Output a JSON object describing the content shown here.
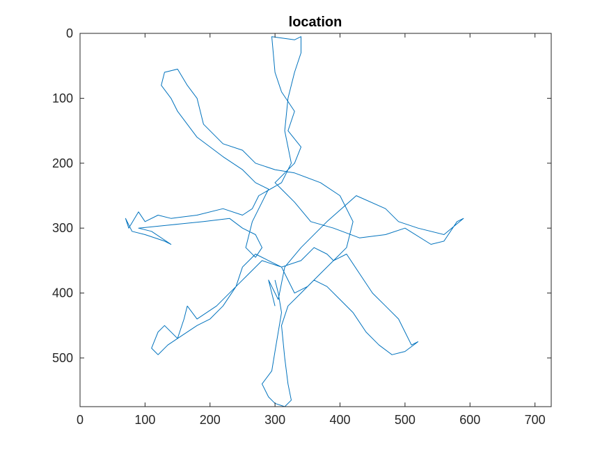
{
  "chart_data": {
    "type": "line",
    "title": "location",
    "xlabel": "",
    "ylabel": "",
    "xlim": [
      0,
      725
    ],
    "ylim": [
      0,
      575
    ],
    "y_reversed": true,
    "grid": false,
    "x_ticks": [
      0,
      100,
      200,
      300,
      400,
      500,
      600,
      700
    ],
    "y_ticks": [
      0,
      100,
      200,
      300,
      400,
      500
    ],
    "line_color": "#0072BD",
    "series": [
      {
        "points": [
          [
            300,
            420
          ],
          [
            290,
            380
          ],
          [
            305,
            410
          ],
          [
            315,
            360
          ],
          [
            340,
            330
          ],
          [
            380,
            290
          ],
          [
            425,
            250
          ],
          [
            470,
            270
          ],
          [
            490,
            290
          ],
          [
            520,
            300
          ],
          [
            560,
            310
          ],
          [
            590,
            285
          ],
          [
            580,
            290
          ],
          [
            560,
            320
          ],
          [
            540,
            325
          ],
          [
            500,
            300
          ],
          [
            470,
            310
          ],
          [
            430,
            315
          ],
          [
            390,
            300
          ],
          [
            355,
            290
          ],
          [
            330,
            260
          ],
          [
            310,
            240
          ],
          [
            300,
            230
          ],
          [
            330,
            200
          ],
          [
            340,
            175
          ],
          [
            320,
            150
          ],
          [
            330,
            120
          ],
          [
            310,
            90
          ],
          [
            300,
            60
          ],
          [
            295,
            5
          ],
          [
            330,
            10
          ],
          [
            340,
            5
          ],
          [
            340,
            30
          ],
          [
            330,
            60
          ],
          [
            320,
            100
          ],
          [
            315,
            150
          ],
          [
            325,
            200
          ],
          [
            310,
            230
          ],
          [
            275,
            250
          ],
          [
            265,
            270
          ],
          [
            250,
            280
          ],
          [
            220,
            270
          ],
          [
            180,
            280
          ],
          [
            140,
            285
          ],
          [
            120,
            280
          ],
          [
            100,
            290
          ],
          [
            90,
            275
          ],
          [
            75,
            300
          ],
          [
            70,
            285
          ],
          [
            80,
            305
          ],
          [
            100,
            310
          ],
          [
            130,
            320
          ],
          [
            140,
            325
          ],
          [
            110,
            305
          ],
          [
            90,
            300
          ],
          [
            140,
            295
          ],
          [
            190,
            290
          ],
          [
            230,
            285
          ],
          [
            250,
            300
          ],
          [
            270,
            310
          ],
          [
            280,
            330
          ],
          [
            270,
            345
          ],
          [
            255,
            330
          ],
          [
            265,
            290
          ],
          [
            280,
            260
          ],
          [
            290,
            240
          ],
          [
            270,
            230
          ],
          [
            250,
            210
          ],
          [
            220,
            190
          ],
          [
            200,
            175
          ],
          [
            180,
            160
          ],
          [
            150,
            120
          ],
          [
            140,
            100
          ],
          [
            125,
            80
          ],
          [
            130,
            60
          ],
          [
            150,
            55
          ],
          [
            165,
            80
          ],
          [
            180,
            100
          ],
          [
            190,
            140
          ],
          [
            220,
            170
          ],
          [
            250,
            180
          ],
          [
            270,
            200
          ],
          [
            300,
            210
          ],
          [
            330,
            215
          ],
          [
            370,
            230
          ],
          [
            400,
            250
          ],
          [
            420,
            290
          ],
          [
            410,
            330
          ],
          [
            390,
            350
          ],
          [
            380,
            340
          ],
          [
            360,
            330
          ],
          [
            340,
            350
          ],
          [
            310,
            360
          ],
          [
            290,
            350
          ],
          [
            270,
            340
          ],
          [
            250,
            360
          ],
          [
            240,
            390
          ],
          [
            220,
            420
          ],
          [
            200,
            440
          ],
          [
            180,
            450
          ],
          [
            150,
            470
          ],
          [
            135,
            480
          ],
          [
            120,
            495
          ],
          [
            110,
            485
          ],
          [
            120,
            460
          ],
          [
            130,
            450
          ],
          [
            150,
            470
          ],
          [
            160,
            440
          ],
          [
            165,
            420
          ],
          [
            180,
            440
          ],
          [
            210,
            420
          ],
          [
            240,
            390
          ],
          [
            260,
            370
          ],
          [
            280,
            350
          ],
          [
            310,
            360
          ],
          [
            320,
            380
          ],
          [
            330,
            400
          ],
          [
            350,
            390
          ],
          [
            370,
            370
          ],
          [
            390,
            350
          ],
          [
            410,
            340
          ],
          [
            430,
            370
          ],
          [
            450,
            400
          ],
          [
            470,
            420
          ],
          [
            490,
            440
          ],
          [
            500,
            460
          ],
          [
            510,
            480
          ],
          [
            520,
            475
          ],
          [
            500,
            490
          ],
          [
            480,
            495
          ],
          [
            460,
            480
          ],
          [
            440,
            460
          ],
          [
            420,
            430
          ],
          [
            400,
            410
          ],
          [
            380,
            390
          ],
          [
            360,
            380
          ],
          [
            340,
            400
          ],
          [
            320,
            420
          ],
          [
            310,
            450
          ],
          [
            315,
            500
          ],
          [
            320,
            540
          ],
          [
            325,
            565
          ],
          [
            315,
            575
          ],
          [
            300,
            570
          ],
          [
            290,
            560
          ],
          [
            280,
            540
          ],
          [
            295,
            520
          ],
          [
            300,
            490
          ],
          [
            305,
            460
          ],
          [
            310,
            430
          ],
          [
            305,
            400
          ],
          [
            300,
            380
          ]
        ]
      }
    ]
  }
}
